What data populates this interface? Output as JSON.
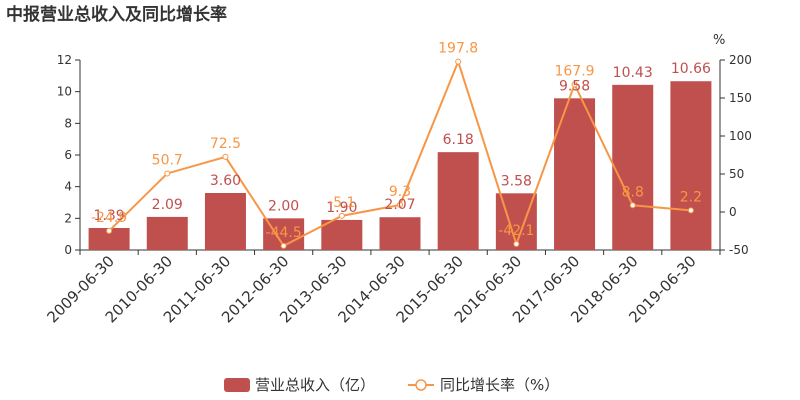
{
  "chart_data": {
    "type": "bar",
    "title": "中报营业总收入及同比增长率",
    "categories": [
      "2009-06-30",
      "2010-06-30",
      "2011-06-30",
      "2012-06-30",
      "2013-06-30",
      "2014-06-30",
      "2015-06-30",
      "2016-06-30",
      "2017-06-30",
      "2018-06-30",
      "2019-06-30"
    ],
    "series": [
      {
        "name": "营业总收入（亿）",
        "type": "bar",
        "axis": "left",
        "color": "#c0504d",
        "values": [
          1.39,
          2.09,
          3.6,
          2.0,
          1.9,
          2.07,
          6.18,
          3.58,
          9.58,
          10.43,
          10.66
        ],
        "labels": [
          "1.39",
          "2.09",
          "3.60",
          "2.00",
          "1.90",
          "2.07",
          "6.18",
          "3.58",
          "9.58",
          "10.43",
          "10.66"
        ]
      },
      {
        "name": "同比增长率（%）",
        "type": "line",
        "axis": "right",
        "color": "#f79646",
        "values": [
          -24.9,
          50.7,
          72.5,
          -44.5,
          -5.1,
          9.3,
          197.8,
          -42.1,
          167.9,
          8.8,
          2.2
        ],
        "labels": [
          "-24.9",
          "50.7",
          "72.5",
          "-44.5",
          "-5.1",
          "9.3",
          "197.8",
          "-42.1",
          "167.9",
          "8.8",
          "2.2"
        ]
      }
    ],
    "y_left": {
      "min": 0,
      "max": 12,
      "ticks": [
        "0",
        "2",
        "4",
        "6",
        "8",
        "10",
        "12"
      ]
    },
    "y_right": {
      "min": -50,
      "max": 200,
      "ticks": [
        "-50",
        "0",
        "50",
        "100",
        "150",
        "200"
      ],
      "unit": "%"
    },
    "legend_position": "bottom-center",
    "grid": false
  }
}
